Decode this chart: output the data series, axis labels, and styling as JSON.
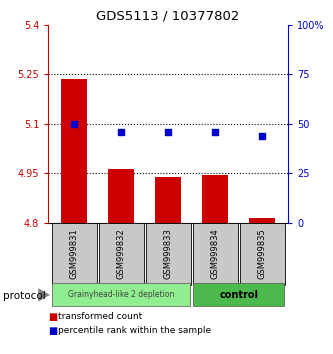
{
  "title": "GDS5113 / 10377802",
  "samples": [
    "GSM999831",
    "GSM999832",
    "GSM999833",
    "GSM999834",
    "GSM999835"
  ],
  "bar_bottoms": [
    4.8,
    4.8,
    4.8,
    4.8,
    4.8
  ],
  "bar_tops": [
    5.235,
    4.965,
    4.94,
    4.945,
    4.815
  ],
  "percentile_ranks": [
    50,
    46,
    46,
    46,
    44
  ],
  "ylim": [
    4.8,
    5.4
  ],
  "ylim_right": [
    0,
    100
  ],
  "yticks_left": [
    4.8,
    4.95,
    5.1,
    5.25,
    5.4
  ],
  "yticks_right": [
    0,
    25,
    50,
    75,
    100
  ],
  "ytick_labels_left": [
    "4.8",
    "4.95",
    "5.1",
    "5.25",
    "5.4"
  ],
  "ytick_labels_right": [
    "0",
    "25",
    "50",
    "75",
    "100%"
  ],
  "gridline_values": [
    4.95,
    5.1,
    5.25
  ],
  "bar_color": "#cc0000",
  "scatter_color": "#0000cc",
  "group1_samples": [
    0,
    1,
    2
  ],
  "group2_samples": [
    3,
    4
  ],
  "group1_label": "Grainyhead-like 2 depletion",
  "group2_label": "control",
  "group1_color": "#90ee90",
  "group2_color": "#4cba4c",
  "protocol_label": "protocol",
  "legend_bar_label": "transformed count",
  "legend_scatter_label": "percentile rank within the sample",
  "left_axis_color": "#cc0000",
  "right_axis_color": "#0000cc",
  "tick_area_color": "#c8c8c8"
}
